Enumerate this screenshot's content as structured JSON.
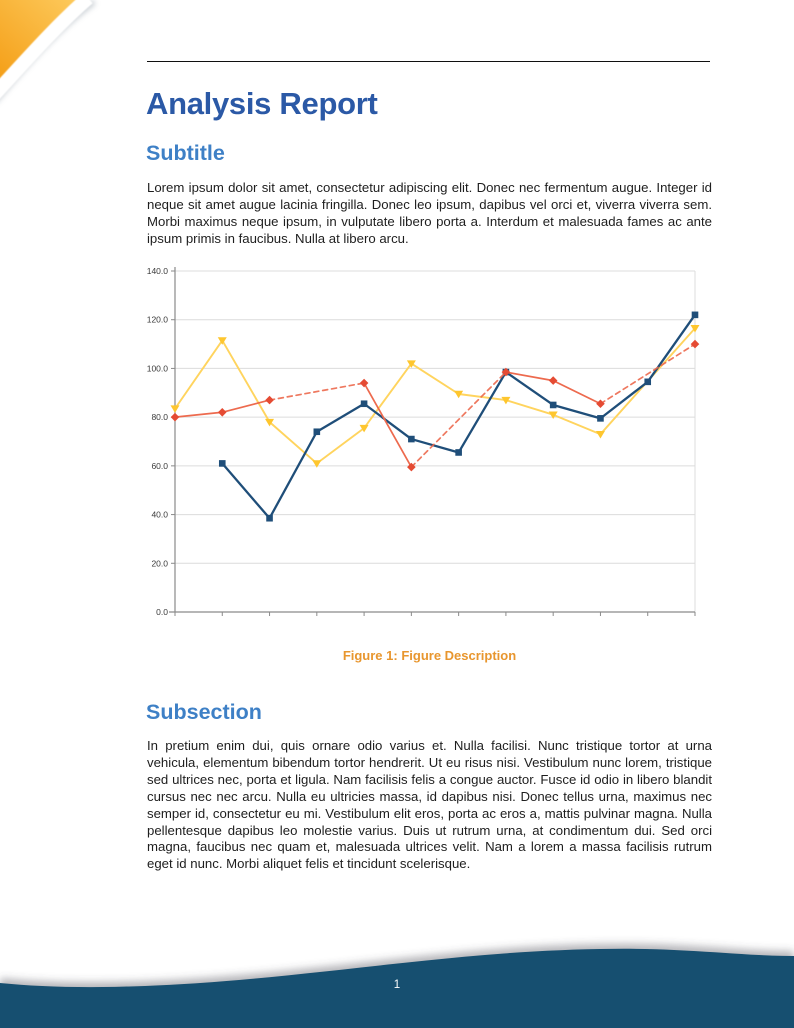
{
  "header": {
    "title": "Analysis Report"
  },
  "sections": [
    {
      "heading": "Subtitle",
      "body": "Lorem ipsum dolor sit amet, consectetur adipiscing elit. Donec nec fermentum augue. Integer id neque sit amet augue lacinia fringilla. Donec leo ipsum, dapibus vel orci et, viverra viverra sem. Morbi maximus neque ipsum, in vulputate libero porta a. Interdum et malesuada fames ac ante ipsum primis in faucibus. Nulla at libero arcu."
    },
    {
      "heading": "Subsection",
      "body": "In pretium enim dui, quis ornare odio varius et. Nulla facilisi. Nunc tristique tortor at urna vehicula, elementum bibendum tortor hendrerit. Ut eu risus nisi. Vestibulum nunc lorem, tristique sed ultrices nec, porta et ligula. Nam facilisis felis a congue auctor. Fusce id odio in libero blandit cursus nec nec arcu. Nulla eu ultricies massa, id dapibus nisi. Donec tellus urna, maximus nec semper id, consectetur eu mi. Vestibulum elit eros, porta ac eros a, mattis pulvinar magna. Nulla pellentesque dapibus leo molestie varius. Duis ut rutrum urna, at condimentum dui. Sed orci magna, faucibus nec quam et, malesuada ultrices velit. Nam a lorem a massa facilisis rutrum eget id nunc. Morbi aliquet felis et tincidunt scelerisque."
    }
  ],
  "figure": {
    "caption": "Figure 1: Figure Description"
  },
  "footer": {
    "page_number": "1"
  },
  "colors": {
    "title_blue": "#2B59A6",
    "sub_blue": "#3E80C6",
    "caption_orange": "#E8962E",
    "footer_navy": "#15506F",
    "decor_orange_deep": "#F49D15",
    "decor_orange_light": "#FDCA5C",
    "grid_gray": "#DCDCDC",
    "axis_gray": "#8A8A8A",
    "tick_label_gray": "#3A3A3A"
  },
  "chart_data": {
    "type": "line",
    "x": [
      1,
      2,
      3,
      4,
      5,
      6,
      7,
      8,
      9,
      10,
      11,
      12
    ],
    "series": [
      {
        "name": "yellow-series",
        "marker": "triangle-down",
        "line_color": "#FFD45E",
        "marker_color": "#FEC62E",
        "line_width": 1.9,
        "bridge_style": "solid",
        "values": [
          83.5,
          111.5,
          78,
          61,
          75.5,
          102,
          89.5,
          87,
          81,
          73,
          null,
          116.5
        ]
      },
      {
        "name": "blue-series",
        "marker": "square",
        "line_color": "#1F4E79",
        "marker_color": "#1F4E79",
        "line_width": 2.3,
        "bridge_style": "solid",
        "values": [
          null,
          61,
          38.5,
          74,
          85.5,
          71,
          65.5,
          98.5,
          85,
          79.5,
          94.5,
          122
        ]
      },
      {
        "name": "red-series",
        "marker": "diamond",
        "line_color": "#ED6A4E",
        "marker_color": "#E54B33",
        "line_width": 1.7,
        "bridge_style": "dashed",
        "values": [
          80,
          82,
          87,
          null,
          94,
          59.5,
          null,
          98.5,
          95,
          85.5,
          null,
          110
        ]
      }
    ],
    "title": "",
    "xlabel": "",
    "ylabel": "",
    "ylim": [
      0,
      140
    ],
    "yticks": [
      0,
      20,
      40,
      60,
      80,
      100,
      120,
      140
    ],
    "ytick_labels": [
      "0.0",
      "20.0",
      "40.0",
      "60.0",
      "80.0",
      "100.0",
      "120.0",
      "140.0"
    ],
    "xtick_labels": [],
    "grid": "horizontal",
    "legend": "none"
  }
}
